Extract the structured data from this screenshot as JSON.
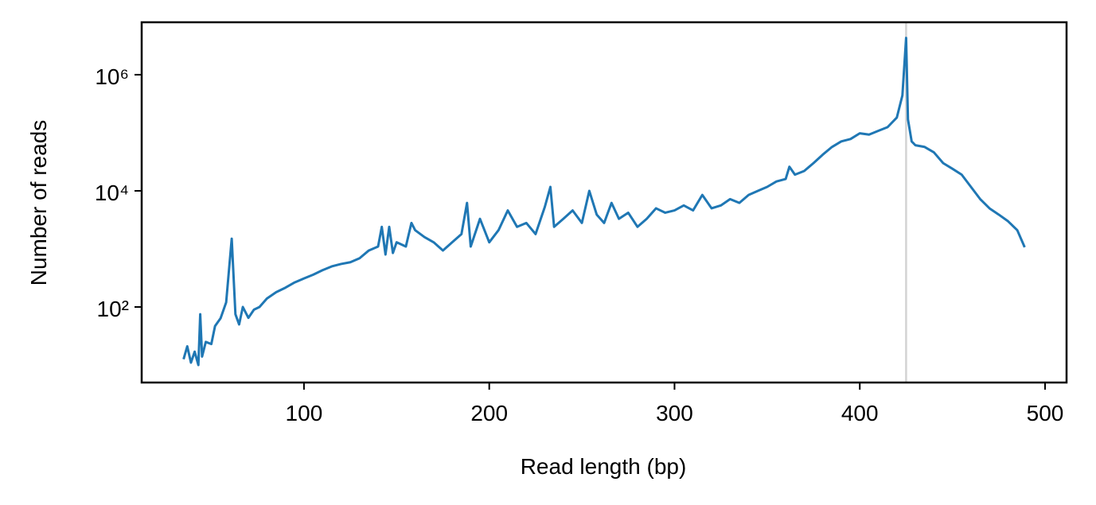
{
  "chart_data": {
    "type": "line",
    "xlabel": "Read length (bp)",
    "ylabel": "Number of reads",
    "xlim": [
      12.4,
      511.6
    ],
    "ylim": [
      5,
      8000000
    ],
    "yscale": "log",
    "xticks": [
      100,
      200,
      300,
      400,
      500
    ],
    "yticks": [
      {
        "value": 100,
        "label": "10²"
      },
      {
        "value": 10000,
        "label": "10⁴"
      },
      {
        "value": 1000000,
        "label": "10⁶"
      }
    ],
    "vline": 425,
    "vline_color": "#d3d3d3",
    "series": [
      {
        "color": "#1f77b4",
        "x": [
          35,
          37,
          39,
          41,
          43,
          44,
          45,
          47,
          50,
          52,
          55,
          58,
          61,
          63,
          65,
          67,
          70,
          73,
          76,
          80,
          85,
          90,
          95,
          100,
          105,
          110,
          115,
          120,
          125,
          130,
          135,
          140,
          142,
          144,
          146,
          148,
          150,
          155,
          158,
          160,
          165,
          170,
          175,
          180,
          185,
          188,
          190,
          195,
          200,
          205,
          210,
          215,
          220,
          225,
          230,
          233,
          235,
          240,
          245,
          250,
          254,
          258,
          262,
          266,
          270,
          275,
          280,
          285,
          290,
          295,
          300,
          305,
          310,
          315,
          320,
          325,
          330,
          335,
          340,
          345,
          350,
          355,
          360,
          362,
          365,
          370,
          375,
          380,
          385,
          390,
          395,
          400,
          405,
          410,
          415,
          420,
          423,
          425,
          426,
          428,
          430,
          435,
          440,
          445,
          450,
          455,
          460,
          465,
          470,
          475,
          480,
          485,
          489
        ],
        "values": [
          12.6,
          21,
          11,
          17,
          10,
          75,
          14,
          25,
          23,
          47,
          64,
          120,
          1500,
          75,
          50,
          100,
          65,
          90,
          100,
          140,
          180,
          215,
          265,
          310,
          360,
          430,
          500,
          550,
          590,
          690,
          940,
          1100,
          2400,
          800,
          2400,
          850,
          1300,
          1100,
          2800,
          2100,
          1600,
          1300,
          940,
          1300,
          1800,
          6200,
          1100,
          3300,
          1300,
          2100,
          4600,
          2400,
          2800,
          1800,
          5300,
          11700,
          2400,
          3300,
          4600,
          2800,
          10000,
          3900,
          2800,
          6200,
          3300,
          4200,
          2400,
          3300,
          5000,
          4200,
          4600,
          5600,
          4600,
          8500,
          5000,
          5600,
          7200,
          6200,
          8500,
          10000,
          11700,
          14500,
          16000,
          26000,
          19000,
          22000,
          30000,
          42000,
          57000,
          71000,
          78000,
          98000,
          93000,
          108000,
          125000,
          183000,
          440000,
          4300000,
          170000,
          71000,
          61000,
          57000,
          46000,
          30000,
          24000,
          19000,
          11700,
          7200,
          5000,
          3900,
          3000,
          2100,
          1070
        ]
      }
    ]
  }
}
